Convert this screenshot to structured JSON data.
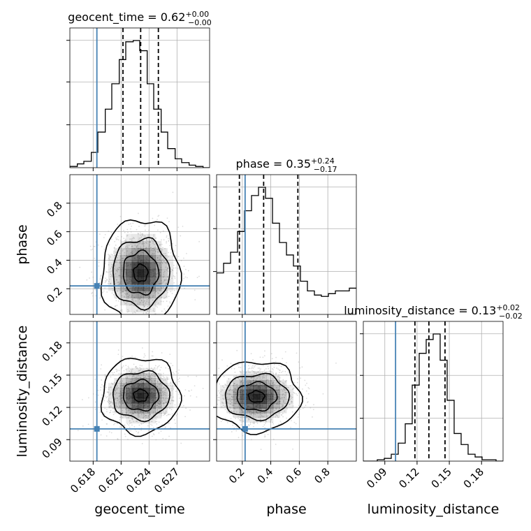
{
  "chart_data": {
    "type": "corner",
    "parameters": [
      {
        "key": "geocent_time",
        "label": "geocent_time",
        "range": [
          0.6155,
          0.6305
        ],
        "ticks": [
          0.618,
          0.621,
          0.624,
          0.627
        ],
        "tick_labels": [
          "0.618",
          "0.621",
          "0.624",
          "0.627"
        ],
        "truth": 0.6184,
        "median": 0.6231,
        "q16": 0.6212,
        "q84": 0.625,
        "title": {
          "main": "geocent_time = 0.62",
          "sup": "+0.00",
          "sub": "−0.00"
        },
        "hist_edges": [
          0.6155,
          0.6163,
          0.617,
          0.6178,
          0.6185,
          0.6193,
          0.62,
          0.6208,
          0.6215,
          0.6223,
          0.623,
          0.6238,
          0.6245,
          0.6253,
          0.626,
          0.6268,
          0.6275,
          0.6283,
          0.629,
          0.6298,
          0.6305
        ],
        "hist_values": [
          0.01,
          0.03,
          0.05,
          0.12,
          0.28,
          0.46,
          0.66,
          0.85,
          0.99,
          1.0,
          0.92,
          0.66,
          0.46,
          0.28,
          0.15,
          0.07,
          0.04,
          0.02,
          0.01,
          0.0
        ]
      },
      {
        "key": "phase",
        "label": "phase",
        "range": [
          0.02,
          1.0
        ],
        "ticks": [
          0.2,
          0.4,
          0.6,
          0.8
        ],
        "tick_labels": [
          "0.2",
          "0.4",
          "0.6",
          "0.8"
        ],
        "truth": 0.22,
        "median": 0.35,
        "q16": 0.18,
        "q84": 0.59,
        "title": {
          "main": "phase = 0.35",
          "sup": "+0.24",
          "sub": "−0.17"
        },
        "hist_edges": [
          0.02,
          0.069,
          0.118,
          0.167,
          0.216,
          0.265,
          0.314,
          0.363,
          0.412,
          0.461,
          0.51,
          0.559,
          0.608,
          0.657,
          0.706,
          0.755,
          0.804,
          0.853,
          0.902,
          0.951,
          1.0
        ],
        "hist_values": [
          0.3,
          0.37,
          0.45,
          0.6,
          0.75,
          0.86,
          0.92,
          0.84,
          0.66,
          0.52,
          0.43,
          0.35,
          0.24,
          0.17,
          0.14,
          0.13,
          0.15,
          0.17,
          0.17,
          0.19
        ]
      },
      {
        "key": "luminosity_distance",
        "label": "luminosity_distance",
        "range": [
          0.07,
          0.2
        ],
        "ticks": [
          0.09,
          0.12,
          0.15,
          0.18
        ],
        "tick_labels": [
          "0.09",
          "0.12",
          "0.15",
          "0.18"
        ],
        "truth": 0.1,
        "median": 0.131,
        "q16": 0.118,
        "q84": 0.146,
        "title": {
          "main": "luminosity_distance = 0.13",
          "sup": "+0.02",
          "sub": "−0.02"
        },
        "hist_edges": [
          0.07,
          0.0765,
          0.083,
          0.0895,
          0.096,
          0.1025,
          0.109,
          0.1155,
          0.122,
          0.1285,
          0.135,
          0.1415,
          0.148,
          0.1545,
          0.161,
          0.1675,
          0.174,
          0.1805,
          0.187,
          0.1935,
          0.2
        ],
        "hist_values": [
          0.0,
          0.0,
          0.01,
          0.02,
          0.05,
          0.13,
          0.27,
          0.55,
          0.78,
          0.88,
          0.92,
          0.73,
          0.44,
          0.2,
          0.12,
          0.05,
          0.03,
          0.01,
          0.01,
          0.0
        ]
      }
    ],
    "pairs": [
      {
        "x": "geocent_time",
        "y": "phase",
        "center": [
          0.6231,
          0.31
        ],
        "sigma": [
          0.0019,
          0.15
        ],
        "levels": [
          0.4,
          1.0,
          1.6,
          2.2
        ],
        "truth": [
          0.6184,
          0.22
        ]
      },
      {
        "x": "geocent_time",
        "y": "luminosity_distance",
        "center": [
          0.6231,
          0.131
        ],
        "sigma": [
          0.0019,
          0.014
        ],
        "levels": [
          0.4,
          1.0,
          1.6,
          2.2
        ],
        "truth": [
          0.6184,
          0.1
        ]
      },
      {
        "x": "phase",
        "y": "luminosity_distance",
        "center": [
          0.3,
          0.13
        ],
        "sigma": [
          0.14,
          0.013
        ],
        "levels": [
          0.4,
          1.0,
          1.6,
          2.2
        ],
        "truth": [
          0.22,
          0.1
        ]
      }
    ],
    "colors": {
      "truth": "#4682b4",
      "hist": "#000000",
      "quantile": "#000000",
      "samples": "#9a9a9a",
      "density": "#000000",
      "grid": "#b0b0b0"
    },
    "grid": true
  }
}
